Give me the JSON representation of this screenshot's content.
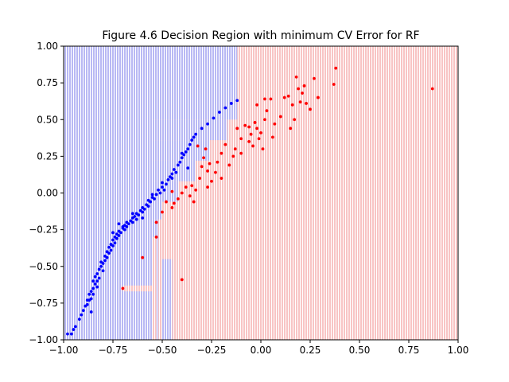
{
  "chart_data": {
    "type": "scatter",
    "title": "Figure 4.6 Decision Region with minimum CV Error for RF",
    "xlabel": "",
    "ylabel": "",
    "xlim": [
      -1.0,
      1.0
    ],
    "ylim": [
      -1.0,
      1.0
    ],
    "x_ticks": [
      -1.0,
      -0.75,
      -0.5,
      -0.25,
      0.0,
      0.25,
      0.5,
      0.75,
      1.0
    ],
    "x_tick_labels": [
      "−1.00",
      "−0.75",
      "−0.50",
      "−0.25",
      "0.00",
      "0.25",
      "0.50",
      "0.75",
      "1.00"
    ],
    "y_ticks": [
      -1.0,
      -0.75,
      -0.5,
      -0.25,
      0.0,
      0.25,
      0.5,
      0.75,
      1.0
    ],
    "y_tick_labels": [
      "−1.00",
      "−0.75",
      "−0.50",
      "−0.25",
      "0.00",
      "0.25",
      "0.50",
      "0.75",
      "1.00"
    ],
    "grid": false,
    "colors": {
      "blue": "#0000ff",
      "red": "#ff0000",
      "blue_region": "#b8b8f4",
      "red_region": "#f8c4c4"
    },
    "regions": [
      {
        "class": "blue",
        "x": [
          -1.0,
          -0.55
        ],
        "y": [
          -1.0,
          1.0
        ]
      },
      {
        "class": "blue",
        "x": [
          -0.55,
          -0.12
        ],
        "y": [
          0.5,
          1.0
        ]
      },
      {
        "class": "blue",
        "x": [
          -0.55,
          -0.17
        ],
        "y": [
          0.36,
          0.5
        ]
      },
      {
        "class": "blue",
        "x": [
          -0.55,
          -0.26
        ],
        "y": [
          0.22,
          0.36
        ]
      },
      {
        "class": "blue",
        "x": [
          -0.55,
          -0.33
        ],
        "y": [
          0.08,
          0.22
        ]
      },
      {
        "class": "blue",
        "x": [
          -0.55,
          -0.42
        ],
        "y": [
          -0.06,
          0.08
        ]
      },
      {
        "class": "blue",
        "x": [
          -0.55,
          -0.5
        ],
        "y": [
          -0.18,
          -0.06
        ]
      },
      {
        "class": "blue",
        "x": [
          -0.55,
          -0.52
        ],
        "y": [
          -0.3,
          -0.18
        ]
      },
      {
        "class": "blue",
        "x": [
          -0.53,
          -0.52
        ],
        "y": [
          -1.0,
          -0.3
        ]
      },
      {
        "class": "blue",
        "x": [
          -0.5,
          -0.45
        ],
        "y": [
          -1.0,
          -0.45
        ]
      },
      {
        "class": "red",
        "x": [
          -0.7,
          -0.55
        ],
        "y": [
          -0.67,
          -0.63
        ]
      }
    ],
    "series": [
      {
        "class": "blue",
        "points": [
          [
            -0.98,
            -0.96
          ],
          [
            -0.96,
            -0.96
          ],
          [
            -0.95,
            -0.93
          ],
          [
            -0.94,
            -0.91
          ],
          [
            -0.92,
            -0.86
          ],
          [
            -0.91,
            -0.83
          ],
          [
            -0.9,
            -0.8
          ],
          [
            -0.89,
            -0.77
          ],
          [
            -0.88,
            -0.76
          ],
          [
            -0.87,
            -0.73
          ],
          [
            -0.86,
            -0.72
          ],
          [
            -0.87,
            -0.69
          ],
          [
            -0.86,
            -0.67
          ],
          [
            -0.85,
            -0.69
          ],
          [
            -0.85,
            -0.65
          ],
          [
            -0.84,
            -0.62
          ],
          [
            -0.85,
            -0.6
          ],
          [
            -0.83,
            -0.64
          ],
          [
            -0.84,
            -0.57
          ],
          [
            -0.83,
            -0.55
          ],
          [
            -0.82,
            -0.58
          ],
          [
            -0.82,
            -0.52
          ],
          [
            -0.81,
            -0.5
          ],
          [
            -0.8,
            -0.53
          ],
          [
            -0.8,
            -0.48
          ],
          [
            -0.79,
            -0.46
          ],
          [
            -0.79,
            -0.43
          ],
          [
            -0.78,
            -0.44
          ],
          [
            -0.78,
            -0.4
          ],
          [
            -0.77,
            -0.41
          ],
          [
            -0.77,
            -0.37
          ],
          [
            -0.76,
            -0.39
          ],
          [
            -0.76,
            -0.35
          ],
          [
            -0.75,
            -0.36
          ],
          [
            -0.75,
            -0.32
          ],
          [
            -0.74,
            -0.34
          ],
          [
            -0.74,
            -0.3
          ],
          [
            -0.73,
            -0.31
          ],
          [
            -0.73,
            -0.28
          ],
          [
            -0.72,
            -0.29
          ],
          [
            -0.72,
            -0.26
          ],
          [
            -0.71,
            -0.27
          ],
          [
            -0.7,
            -0.24
          ],
          [
            -0.69,
            -0.25
          ],
          [
            -0.69,
            -0.22
          ],
          [
            -0.68,
            -0.23
          ],
          [
            -0.68,
            -0.2
          ],
          [
            -0.67,
            -0.21
          ],
          [
            -0.66,
            -0.19
          ],
          [
            -0.65,
            -0.2
          ],
          [
            -0.65,
            -0.17
          ],
          [
            -0.64,
            -0.16
          ],
          [
            -0.63,
            -0.18
          ],
          [
            -0.63,
            -0.14
          ],
          [
            -0.62,
            -0.15
          ],
          [
            -0.61,
            -0.12
          ],
          [
            -0.6,
            -0.13
          ],
          [
            -0.6,
            -0.1
          ],
          [
            -0.59,
            -0.11
          ],
          [
            -0.58,
            -0.08
          ],
          [
            -0.57,
            -0.09
          ],
          [
            -0.57,
            -0.05
          ],
          [
            -0.56,
            -0.06
          ],
          [
            -0.55,
            -0.03
          ],
          [
            -0.54,
            -0.04
          ],
          [
            -0.53,
            -0.01
          ],
          [
            -0.52,
            0.02
          ],
          [
            -0.51,
            0.0
          ],
          [
            -0.5,
            0.04
          ],
          [
            -0.49,
            0.02
          ],
          [
            -0.48,
            0.06
          ],
          [
            -0.47,
            0.09
          ],
          [
            -0.46,
            0.11
          ],
          [
            -0.45,
            0.13
          ],
          [
            -0.44,
            0.16
          ],
          [
            -0.43,
            0.14
          ],
          [
            -0.42,
            0.19
          ],
          [
            -0.41,
            0.21
          ],
          [
            -0.4,
            0.24
          ],
          [
            -0.39,
            0.26
          ],
          [
            -0.38,
            0.28
          ],
          [
            -0.37,
            0.3
          ],
          [
            -0.36,
            0.33
          ],
          [
            -0.35,
            0.36
          ],
          [
            -0.34,
            0.38
          ],
          [
            -0.33,
            0.4
          ],
          [
            -0.3,
            0.44
          ],
          [
            -0.27,
            0.47
          ],
          [
            -0.24,
            0.51
          ],
          [
            -0.21,
            0.55
          ],
          [
            -0.18,
            0.58
          ],
          [
            -0.15,
            0.61
          ],
          [
            -0.12,
            0.63
          ],
          [
            -0.7,
            -0.23
          ],
          [
            -0.72,
            -0.21
          ],
          [
            -0.75,
            -0.27
          ],
          [
            -0.81,
            -0.47
          ],
          [
            -0.83,
            -0.6
          ],
          [
            -0.86,
            -0.81
          ],
          [
            -0.88,
            -0.73
          ],
          [
            -0.65,
            -0.14
          ],
          [
            -0.6,
            -0.17
          ],
          [
            -0.55,
            -0.01
          ],
          [
            -0.5,
            0.07
          ],
          [
            -0.45,
            0.1
          ],
          [
            -0.4,
            0.27
          ],
          [
            -0.37,
            0.17
          ]
        ]
      },
      {
        "class": "red",
        "points": [
          [
            -0.7,
            -0.65
          ],
          [
            -0.6,
            -0.44
          ],
          [
            -0.4,
            -0.59
          ],
          [
            -0.53,
            -0.3
          ],
          [
            -0.53,
            -0.2
          ],
          [
            -0.5,
            -0.13
          ],
          [
            -0.48,
            -0.06
          ],
          [
            -0.45,
            -0.1
          ],
          [
            -0.42,
            -0.04
          ],
          [
            -0.4,
            0.0
          ],
          [
            -0.38,
            0.04
          ],
          [
            -0.36,
            -0.02
          ],
          [
            -0.35,
            0.05
          ],
          [
            -0.33,
            0.02
          ],
          [
            -0.31,
            0.1
          ],
          [
            -0.3,
            0.18
          ],
          [
            -0.29,
            0.24
          ],
          [
            -0.28,
            0.3
          ],
          [
            -0.27,
            0.15
          ],
          [
            -0.26,
            0.2
          ],
          [
            -0.25,
            0.08
          ],
          [
            -0.23,
            0.14
          ],
          [
            -0.22,
            0.21
          ],
          [
            -0.2,
            0.27
          ],
          [
            -0.18,
            0.33
          ],
          [
            -0.16,
            0.19
          ],
          [
            -0.14,
            0.25
          ],
          [
            -0.13,
            0.3
          ],
          [
            -0.12,
            0.44
          ],
          [
            -0.1,
            0.37
          ],
          [
            -0.08,
            0.46
          ],
          [
            -0.06,
            0.35
          ],
          [
            -0.05,
            0.4
          ],
          [
            -0.04,
            0.32
          ],
          [
            -0.03,
            0.48
          ],
          [
            -0.02,
            0.44
          ],
          [
            -0.01,
            0.37
          ],
          [
            0.0,
            0.41
          ],
          [
            0.01,
            0.3
          ],
          [
            0.02,
            0.5
          ],
          [
            0.03,
            0.56
          ],
          [
            0.05,
            0.64
          ],
          [
            0.07,
            0.47
          ],
          [
            0.1,
            0.52
          ],
          [
            0.12,
            0.65
          ],
          [
            0.14,
            0.66
          ],
          [
            0.16,
            0.6
          ],
          [
            0.17,
            0.5
          ],
          [
            0.18,
            0.79
          ],
          [
            0.19,
            0.71
          ],
          [
            0.2,
            0.62
          ],
          [
            0.21,
            0.68
          ],
          [
            0.22,
            0.73
          ],
          [
            0.23,
            0.61
          ],
          [
            0.25,
            0.57
          ],
          [
            0.27,
            0.78
          ],
          [
            0.29,
            0.65
          ],
          [
            0.37,
            0.74
          ],
          [
            0.38,
            0.85
          ],
          [
            0.87,
            0.71
          ],
          [
            -0.02,
            0.6
          ],
          [
            0.02,
            0.64
          ],
          [
            -0.06,
            0.45
          ],
          [
            0.06,
            0.38
          ],
          [
            0.15,
            0.44
          ],
          [
            -0.1,
            0.27
          ],
          [
            -0.2,
            0.1
          ],
          [
            -0.27,
            0.04
          ],
          [
            -0.34,
            -0.06
          ],
          [
            -0.44,
            -0.07
          ],
          [
            -0.45,
            0.01
          ],
          [
            -0.32,
            0.32
          ]
        ]
      }
    ]
  }
}
